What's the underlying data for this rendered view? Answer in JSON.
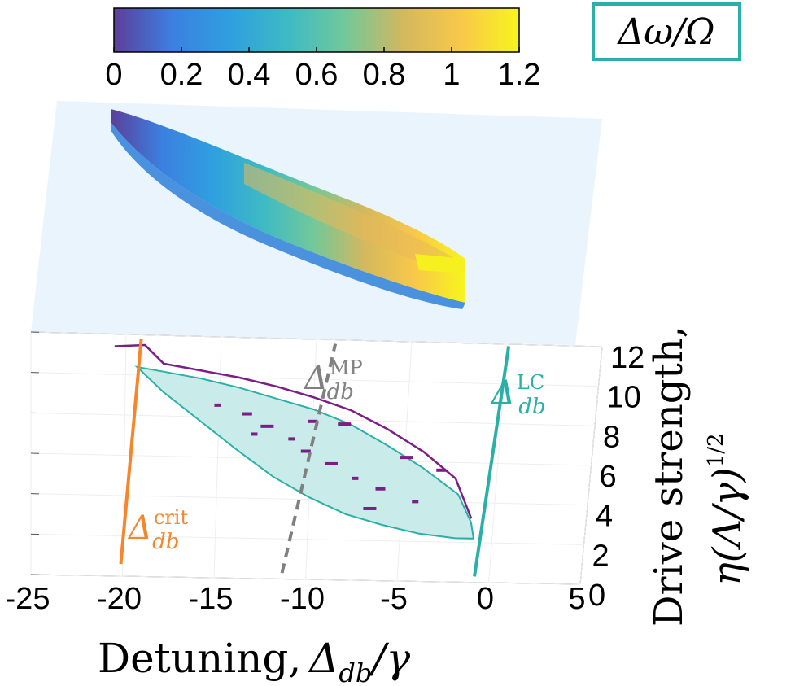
{
  "figure": {
    "colorbar_label": "Δω/Ω",
    "colorbar_ticks": [
      "0",
      "0.2",
      "0.4",
      "0.6",
      "0.8",
      "1",
      "1.2"
    ],
    "colorbar_range": [
      0,
      1.2
    ],
    "colorbar_stops": [
      "#5b3f9a",
      "#3c7fe0",
      "#2f9fe0",
      "#3dbac4",
      "#72c89a",
      "#d3b85e",
      "#f9c84a",
      "#f8f51c"
    ],
    "x_label_prefix": "Detuning,",
    "x_label_main": "Δ",
    "x_label_sub": "db",
    "x_label_suffix": "/γ",
    "y_label_line1": "Drive strength,",
    "y_label_line2": "η(Λ/γ)",
    "y_label_exp": "1/2",
    "annotations": {
      "crit": {
        "main": "Δ",
        "sup": "crit",
        "sub": "db"
      },
      "mp": {
        "main": "Δ",
        "sup": "MP",
        "sub": "db"
      },
      "lc": {
        "main": "Δ",
        "sup": "LC",
        "sub": "db"
      }
    },
    "colors": {
      "crit": "#f5862c",
      "mp": "#808080",
      "lc": "#2ab0a6",
      "contour": "#7b1f86",
      "region_fill": "#c9ecea",
      "plane": "#e9f4fd"
    }
  },
  "chart_data": {
    "type": "surface",
    "x_ticks": [
      "-25",
      "-20",
      "-15",
      "-10",
      "-5",
      "0",
      "5"
    ],
    "y_ticks": [
      "0",
      "2",
      "4",
      "6",
      "8",
      "10",
      "12"
    ],
    "xlim": [
      -25,
      5
    ],
    "ylim": [
      0,
      12
    ],
    "lines": {
      "crit": [
        [
          -20.1,
          0.6
        ],
        [
          -19.2,
          11.8
        ]
      ],
      "mp": [
        [
          -11.3,
          0.3
        ],
        [
          -9.0,
          11.8
        ]
      ],
      "lc": [
        [
          -0.8,
          0.3
        ],
        [
          0.1,
          11.9
        ]
      ]
    },
    "region_outline": [
      [
        -19.4,
        10.4
      ],
      [
        -18,
        9.2
      ],
      [
        -16,
        7.8
      ],
      [
        -14,
        6.4
      ],
      [
        -12,
        5.1
      ],
      [
        -10,
        4.1
      ],
      [
        -8,
        3.3
      ],
      [
        -6,
        2.8
      ],
      [
        -4,
        2.4
      ],
      [
        -2,
        2.2
      ],
      [
        -1.0,
        2.2
      ],
      [
        -1.2,
        3.0
      ],
      [
        -2,
        4.4
      ],
      [
        -4,
        5.7
      ],
      [
        -6,
        6.8
      ],
      [
        -8,
        7.8
      ],
      [
        -10,
        8.5
      ],
      [
        -12,
        9.0
      ],
      [
        -14,
        9.5
      ],
      [
        -16,
        9.9
      ],
      [
        -18,
        10.2
      ]
    ]
  }
}
